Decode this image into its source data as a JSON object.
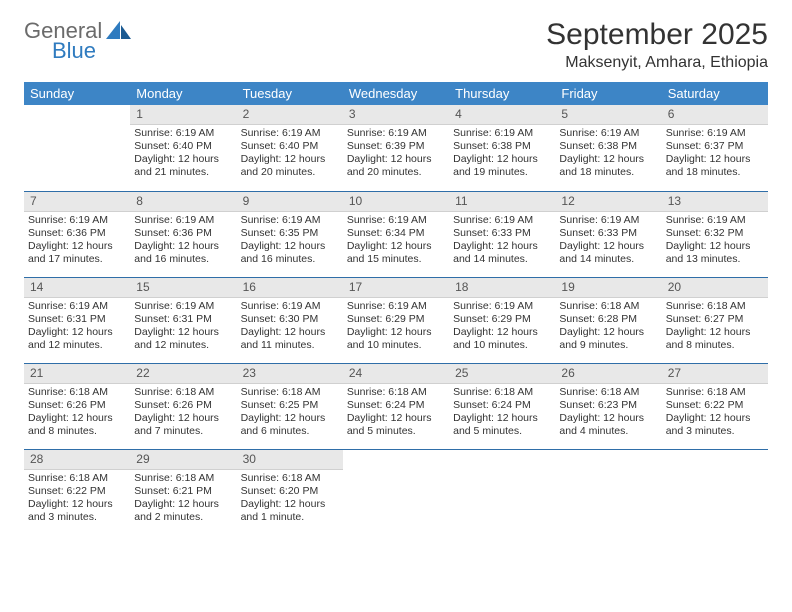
{
  "brand": {
    "word1": "General",
    "word2": "Blue",
    "color_accent": "#2f7bbf",
    "color_gray": "#6b6b6b"
  },
  "title": "September 2025",
  "location": "Maksenyit, Amhara, Ethiopia",
  "header_bg": "#3d85c6",
  "daynum_bg": "#e8e8e8",
  "week_border": "#2f6ea8",
  "weekdays": [
    "Sunday",
    "Monday",
    "Tuesday",
    "Wednesday",
    "Thursday",
    "Friday",
    "Saturday"
  ],
  "weeks": [
    [
      null,
      {
        "n": "1",
        "sr": "Sunrise: 6:19 AM",
        "ss": "Sunset: 6:40 PM",
        "dl": "Daylight: 12 hours and 21 minutes."
      },
      {
        "n": "2",
        "sr": "Sunrise: 6:19 AM",
        "ss": "Sunset: 6:40 PM",
        "dl": "Daylight: 12 hours and 20 minutes."
      },
      {
        "n": "3",
        "sr": "Sunrise: 6:19 AM",
        "ss": "Sunset: 6:39 PM",
        "dl": "Daylight: 12 hours and 20 minutes."
      },
      {
        "n": "4",
        "sr": "Sunrise: 6:19 AM",
        "ss": "Sunset: 6:38 PM",
        "dl": "Daylight: 12 hours and 19 minutes."
      },
      {
        "n": "5",
        "sr": "Sunrise: 6:19 AM",
        "ss": "Sunset: 6:38 PM",
        "dl": "Daylight: 12 hours and 18 minutes."
      },
      {
        "n": "6",
        "sr": "Sunrise: 6:19 AM",
        "ss": "Sunset: 6:37 PM",
        "dl": "Daylight: 12 hours and 18 minutes."
      }
    ],
    [
      {
        "n": "7",
        "sr": "Sunrise: 6:19 AM",
        "ss": "Sunset: 6:36 PM",
        "dl": "Daylight: 12 hours and 17 minutes."
      },
      {
        "n": "8",
        "sr": "Sunrise: 6:19 AM",
        "ss": "Sunset: 6:36 PM",
        "dl": "Daylight: 12 hours and 16 minutes."
      },
      {
        "n": "9",
        "sr": "Sunrise: 6:19 AM",
        "ss": "Sunset: 6:35 PM",
        "dl": "Daylight: 12 hours and 16 minutes."
      },
      {
        "n": "10",
        "sr": "Sunrise: 6:19 AM",
        "ss": "Sunset: 6:34 PM",
        "dl": "Daylight: 12 hours and 15 minutes."
      },
      {
        "n": "11",
        "sr": "Sunrise: 6:19 AM",
        "ss": "Sunset: 6:33 PM",
        "dl": "Daylight: 12 hours and 14 minutes."
      },
      {
        "n": "12",
        "sr": "Sunrise: 6:19 AM",
        "ss": "Sunset: 6:33 PM",
        "dl": "Daylight: 12 hours and 14 minutes."
      },
      {
        "n": "13",
        "sr": "Sunrise: 6:19 AM",
        "ss": "Sunset: 6:32 PM",
        "dl": "Daylight: 12 hours and 13 minutes."
      }
    ],
    [
      {
        "n": "14",
        "sr": "Sunrise: 6:19 AM",
        "ss": "Sunset: 6:31 PM",
        "dl": "Daylight: 12 hours and 12 minutes."
      },
      {
        "n": "15",
        "sr": "Sunrise: 6:19 AM",
        "ss": "Sunset: 6:31 PM",
        "dl": "Daylight: 12 hours and 12 minutes."
      },
      {
        "n": "16",
        "sr": "Sunrise: 6:19 AM",
        "ss": "Sunset: 6:30 PM",
        "dl": "Daylight: 12 hours and 11 minutes."
      },
      {
        "n": "17",
        "sr": "Sunrise: 6:19 AM",
        "ss": "Sunset: 6:29 PM",
        "dl": "Daylight: 12 hours and 10 minutes."
      },
      {
        "n": "18",
        "sr": "Sunrise: 6:19 AM",
        "ss": "Sunset: 6:29 PM",
        "dl": "Daylight: 12 hours and 10 minutes."
      },
      {
        "n": "19",
        "sr": "Sunrise: 6:18 AM",
        "ss": "Sunset: 6:28 PM",
        "dl": "Daylight: 12 hours and 9 minutes."
      },
      {
        "n": "20",
        "sr": "Sunrise: 6:18 AM",
        "ss": "Sunset: 6:27 PM",
        "dl": "Daylight: 12 hours and 8 minutes."
      }
    ],
    [
      {
        "n": "21",
        "sr": "Sunrise: 6:18 AM",
        "ss": "Sunset: 6:26 PM",
        "dl": "Daylight: 12 hours and 8 minutes."
      },
      {
        "n": "22",
        "sr": "Sunrise: 6:18 AM",
        "ss": "Sunset: 6:26 PM",
        "dl": "Daylight: 12 hours and 7 minutes."
      },
      {
        "n": "23",
        "sr": "Sunrise: 6:18 AM",
        "ss": "Sunset: 6:25 PM",
        "dl": "Daylight: 12 hours and 6 minutes."
      },
      {
        "n": "24",
        "sr": "Sunrise: 6:18 AM",
        "ss": "Sunset: 6:24 PM",
        "dl": "Daylight: 12 hours and 5 minutes."
      },
      {
        "n": "25",
        "sr": "Sunrise: 6:18 AM",
        "ss": "Sunset: 6:24 PM",
        "dl": "Daylight: 12 hours and 5 minutes."
      },
      {
        "n": "26",
        "sr": "Sunrise: 6:18 AM",
        "ss": "Sunset: 6:23 PM",
        "dl": "Daylight: 12 hours and 4 minutes."
      },
      {
        "n": "27",
        "sr": "Sunrise: 6:18 AM",
        "ss": "Sunset: 6:22 PM",
        "dl": "Daylight: 12 hours and 3 minutes."
      }
    ],
    [
      {
        "n": "28",
        "sr": "Sunrise: 6:18 AM",
        "ss": "Sunset: 6:22 PM",
        "dl": "Daylight: 12 hours and 3 minutes."
      },
      {
        "n": "29",
        "sr": "Sunrise: 6:18 AM",
        "ss": "Sunset: 6:21 PM",
        "dl": "Daylight: 12 hours and 2 minutes."
      },
      {
        "n": "30",
        "sr": "Sunrise: 6:18 AM",
        "ss": "Sunset: 6:20 PM",
        "dl": "Daylight: 12 hours and 1 minute."
      },
      null,
      null,
      null,
      null
    ]
  ]
}
